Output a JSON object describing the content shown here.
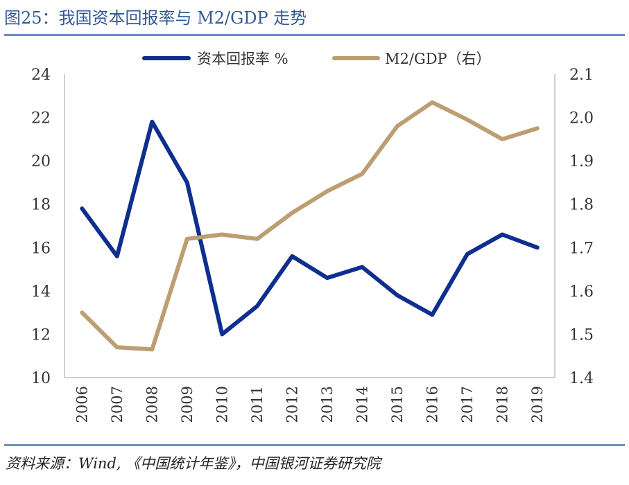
{
  "figure": {
    "title": "图25：我国资本回报率与 M2/GDP 走势",
    "source": "资料来源：Wind, 《中国统计年鉴》，中国银河证券研究院"
  },
  "chart_data": {
    "type": "line",
    "categories": [
      "2006",
      "2007",
      "2008",
      "2009",
      "2010",
      "2011",
      "2012",
      "2013",
      "2014",
      "2015",
      "2016",
      "2017",
      "2018",
      "2019"
    ],
    "series": [
      {
        "name": "资本回报率 %",
        "axis": "left",
        "color": "#0f2f8f",
        "values": [
          17.8,
          15.6,
          21.8,
          19.0,
          12.0,
          13.3,
          15.6,
          14.6,
          15.1,
          13.8,
          12.9,
          15.7,
          16.6,
          16.0
        ]
      },
      {
        "name": "M2/GDP（右）",
        "axis": "right",
        "color": "#bc9e72",
        "values": [
          1.55,
          1.47,
          1.465,
          1.72,
          1.73,
          1.72,
          1.78,
          1.83,
          1.87,
          1.98,
          2.035,
          1.995,
          1.95,
          1.975
        ]
      }
    ],
    "y_left": {
      "min": 10,
      "max": 24,
      "ticks": [
        "10",
        "12",
        "14",
        "16",
        "18",
        "20",
        "22",
        "24"
      ]
    },
    "y_right": {
      "min": 1.4,
      "max": 2.1,
      "ticks": [
        "1.4",
        "1.5",
        "1.6",
        "1.7",
        "1.8",
        "1.9",
        "2.0",
        "2.1"
      ]
    },
    "legend_position": "top",
    "grid": false,
    "xlabel": "",
    "ylabel": ""
  }
}
